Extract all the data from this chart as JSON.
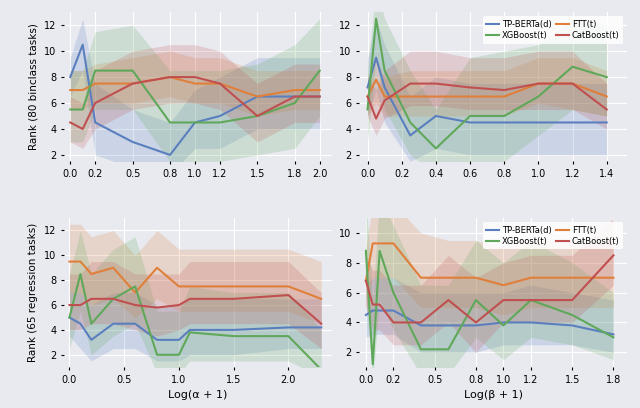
{
  "colors": {
    "tp_berta": "#5b7fbe",
    "ftt": "#e07f3a",
    "xgboost": "#5fa85a",
    "catboost": "#c05050"
  },
  "alpha_fill": 0.2,
  "top_left": {
    "x": [
      0.0,
      0.1,
      0.2,
      0.5,
      0.8,
      1.0,
      1.2,
      1.5,
      1.8,
      2.0
    ],
    "tp_berta_y": [
      8.0,
      10.5,
      4.5,
      3.0,
      2.0,
      4.5,
      5.0,
      6.5,
      6.5,
      6.5
    ],
    "tp_berta_lo": [
      6.5,
      8.5,
      2.0,
      1.0,
      0.5,
      2.5,
      2.5,
      4.0,
      4.0,
      4.0
    ],
    "tp_berta_hi": [
      9.5,
      12.5,
      7.5,
      5.5,
      4.5,
      7.0,
      8.0,
      9.5,
      9.5,
      9.5
    ],
    "ftt_y": [
      7.0,
      7.0,
      7.5,
      7.5,
      8.0,
      7.5,
      7.5,
      6.5,
      7.0,
      7.0
    ],
    "ftt_lo": [
      5.5,
      5.5,
      6.0,
      6.0,
      6.5,
      6.0,
      6.0,
      5.0,
      5.5,
      5.5
    ],
    "ftt_hi": [
      8.5,
      8.5,
      9.0,
      9.5,
      10.0,
      9.5,
      9.5,
      8.5,
      8.5,
      8.5
    ],
    "xgboost_y": [
      5.5,
      5.5,
      8.5,
      8.5,
      4.5,
      4.5,
      4.5,
      5.0,
      6.0,
      8.5
    ],
    "xgboost_lo": [
      3.0,
      3.0,
      5.5,
      5.5,
      1.5,
      1.5,
      1.5,
      2.0,
      2.5,
      5.0
    ],
    "xgboost_hi": [
      8.5,
      8.5,
      11.5,
      12.0,
      8.5,
      8.5,
      8.5,
      9.0,
      10.5,
      12.5
    ],
    "catboost_y": [
      4.5,
      4.0,
      6.0,
      7.5,
      8.0,
      8.0,
      7.5,
      5.0,
      6.5,
      6.5
    ],
    "catboost_lo": [
      3.0,
      2.5,
      4.0,
      5.5,
      6.0,
      6.0,
      5.5,
      3.0,
      4.5,
      4.5
    ],
    "catboost_hi": [
      6.5,
      6.0,
      8.5,
      10.0,
      10.5,
      10.5,
      10.0,
      7.5,
      9.0,
      9.0
    ],
    "ylim": [
      1.5,
      13.0
    ],
    "yticks": [
      2,
      4,
      6,
      8,
      10,
      12
    ],
    "xlim": [
      -0.05,
      2.1
    ],
    "xticks": [
      0.0,
      0.2,
      0.5,
      0.8,
      1.0,
      1.2,
      1.5,
      1.8,
      2.0
    ],
    "xlabel": "",
    "ylabel": "Rank (80 binclass tasks)"
  },
  "top_right": {
    "x": [
      0.0,
      0.05,
      0.1,
      0.25,
      0.4,
      0.6,
      0.8,
      1.0,
      1.2,
      1.4
    ],
    "tp_berta_y": [
      7.2,
      9.5,
      7.2,
      3.5,
      5.0,
      4.5,
      4.5,
      4.5,
      4.5,
      4.5
    ],
    "tp_berta_lo": [
      5.0,
      7.0,
      4.5,
      1.5,
      2.5,
      2.0,
      2.0,
      2.0,
      2.0,
      2.0
    ],
    "tp_berta_hi": [
      9.5,
      12.5,
      10.5,
      6.5,
      8.0,
      7.5,
      7.5,
      7.5,
      7.5,
      7.5
    ],
    "ftt_y": [
      6.5,
      7.8,
      6.5,
      6.5,
      6.5,
      6.5,
      6.5,
      7.5,
      7.5,
      6.5
    ],
    "ftt_lo": [
      5.0,
      6.0,
      5.0,
      5.0,
      5.0,
      5.0,
      5.0,
      6.0,
      5.5,
      5.0
    ],
    "ftt_hi": [
      8.0,
      9.5,
      8.0,
      8.5,
      8.5,
      8.5,
      8.5,
      9.5,
      9.5,
      8.5
    ],
    "xgboost_y": [
      5.5,
      12.5,
      8.5,
      4.5,
      2.5,
      5.0,
      5.0,
      6.5,
      8.8,
      8.0
    ],
    "xgboost_lo": [
      3.0,
      9.5,
      5.5,
      2.0,
      0.5,
      1.5,
      1.5,
      3.5,
      5.5,
      5.0
    ],
    "xgboost_hi": [
      8.5,
      15.0,
      12.5,
      8.5,
      5.5,
      9.5,
      10.0,
      10.5,
      12.5,
      12.0
    ],
    "catboost_y": [
      6.5,
      4.8,
      6.2,
      7.5,
      7.5,
      7.2,
      7.0,
      7.5,
      7.5,
      5.5
    ],
    "catboost_lo": [
      5.0,
      3.5,
      4.8,
      5.8,
      5.8,
      5.5,
      5.5,
      5.5,
      5.5,
      4.0
    ],
    "catboost_hi": [
      8.0,
      7.0,
      8.5,
      10.0,
      10.0,
      9.5,
      9.5,
      10.0,
      10.0,
      7.5
    ],
    "ylim": [
      1.5,
      13.0
    ],
    "yticks": [
      2,
      4,
      6,
      8,
      10,
      12
    ],
    "xlim": [
      -0.05,
      1.52
    ],
    "xticks": [
      0.0,
      0.2,
      0.4,
      0.6,
      0.8,
      1.0,
      1.2,
      1.4
    ],
    "xlabel": "",
    "ylabel": ""
  },
  "bottom_left": {
    "x": [
      0.0,
      0.1,
      0.2,
      0.4,
      0.6,
      0.8,
      1.0,
      1.1,
      1.5,
      2.0,
      2.3
    ],
    "tp_berta_y": [
      5.0,
      4.5,
      3.2,
      4.5,
      4.5,
      3.2,
      3.2,
      4.0,
      4.0,
      4.2,
      4.2
    ],
    "tp_berta_lo": [
      3.5,
      2.5,
      1.5,
      2.5,
      2.5,
      1.5,
      1.5,
      2.0,
      2.0,
      2.5,
      2.5
    ],
    "tp_berta_hi": [
      7.0,
      7.0,
      6.0,
      7.0,
      7.0,
      6.0,
      6.0,
      6.5,
      6.5,
      6.5,
      6.5
    ],
    "ftt_y": [
      9.5,
      9.5,
      8.5,
      9.0,
      7.0,
      9.0,
      7.5,
      7.5,
      7.5,
      7.5,
      6.5
    ],
    "ftt_lo": [
      7.0,
      7.0,
      6.0,
      6.5,
      5.0,
      6.5,
      5.5,
      5.5,
      5.5,
      5.5,
      4.5
    ],
    "ftt_hi": [
      12.5,
      12.5,
      11.5,
      12.0,
      10.0,
      12.0,
      10.5,
      10.5,
      10.5,
      10.5,
      9.5
    ],
    "xgboost_y": [
      5.0,
      8.5,
      4.5,
      6.5,
      7.5,
      2.0,
      2.0,
      3.8,
      3.5,
      3.5,
      0.8
    ],
    "xgboost_lo": [
      2.5,
      5.5,
      2.0,
      3.5,
      4.5,
      0.5,
      0.5,
      1.5,
      1.5,
      1.5,
      0.2
    ],
    "xgboost_hi": [
      8.5,
      12.0,
      8.5,
      10.5,
      11.5,
      5.5,
      5.5,
      7.5,
      7.0,
      7.0,
      4.0
    ],
    "catboost_y": [
      6.0,
      6.0,
      6.5,
      6.5,
      6.0,
      5.8,
      6.0,
      6.5,
      6.5,
      6.8,
      4.5
    ],
    "catboost_lo": [
      4.0,
      4.0,
      4.5,
      4.5,
      4.0,
      3.5,
      4.0,
      4.5,
      4.5,
      4.5,
      2.5
    ],
    "catboost_hi": [
      8.5,
      8.5,
      9.5,
      9.5,
      8.5,
      8.5,
      8.5,
      9.5,
      9.5,
      9.5,
      7.0
    ],
    "ylim": [
      1.0,
      13.0
    ],
    "yticks": [
      2,
      4,
      6,
      8,
      10,
      12
    ],
    "xlim": [
      -0.05,
      2.4
    ],
    "xticks": [
      0.0,
      0.5,
      1.0,
      1.5,
      2.0
    ],
    "xlabel": "Log(α + 1)",
    "ylabel": "Rank (65 regression tasks)"
  },
  "bottom_right": {
    "x": [
      0.0,
      0.05,
      0.1,
      0.2,
      0.4,
      0.6,
      0.8,
      1.0,
      1.2,
      1.5,
      1.8
    ],
    "tp_berta_y": [
      4.5,
      4.8,
      4.8,
      4.8,
      3.8,
      3.8,
      3.8,
      4.0,
      4.0,
      3.8,
      3.2
    ],
    "tp_berta_lo": [
      3.0,
      3.2,
      3.2,
      3.2,
      2.0,
      2.0,
      2.0,
      2.5,
      2.5,
      2.5,
      2.0
    ],
    "tp_berta_hi": [
      6.5,
      7.0,
      7.0,
      7.0,
      6.0,
      6.0,
      6.0,
      6.0,
      6.5,
      6.0,
      5.5
    ],
    "ftt_y": [
      6.8,
      9.3,
      9.3,
      9.3,
      7.0,
      7.0,
      7.0,
      6.5,
      7.0,
      7.0,
      7.0
    ],
    "ftt_lo": [
      5.0,
      7.0,
      7.0,
      7.0,
      5.0,
      5.0,
      5.0,
      4.5,
      5.0,
      5.0,
      5.0
    ],
    "ftt_hi": [
      9.0,
      12.0,
      12.0,
      12.0,
      10.0,
      9.5,
      9.5,
      9.0,
      9.5,
      9.5,
      9.5
    ],
    "xgboost_y": [
      8.8,
      1.2,
      8.8,
      6.0,
      2.2,
      2.2,
      5.5,
      3.8,
      5.5,
      4.5,
      3.0
    ],
    "xgboost_lo": [
      5.5,
      0.2,
      5.5,
      3.5,
      0.5,
      0.5,
      3.0,
      1.5,
      3.0,
      2.5,
      1.5
    ],
    "xgboost_hi": [
      12.5,
      5.5,
      12.5,
      10.5,
      6.5,
      6.5,
      9.5,
      8.0,
      9.5,
      8.0,
      6.0
    ],
    "catboost_y": [
      6.8,
      5.2,
      5.2,
      4.0,
      4.0,
      5.5,
      4.0,
      5.5,
      5.5,
      5.5,
      8.5
    ],
    "catboost_lo": [
      5.0,
      3.5,
      3.5,
      2.5,
      2.5,
      4.0,
      2.0,
      4.0,
      4.0,
      4.0,
      6.5
    ],
    "catboost_hi": [
      8.5,
      7.5,
      7.5,
      6.5,
      6.5,
      8.5,
      7.0,
      8.0,
      8.5,
      8.5,
      11.0
    ],
    "ylim": [
      1.0,
      11.0
    ],
    "yticks": [
      2,
      4,
      6,
      8,
      10
    ],
    "xlim": [
      -0.05,
      1.9
    ],
    "xticks": [
      0.0,
      0.2,
      0.5,
      0.8,
      1.0,
      1.2,
      1.5,
      1.8
    ],
    "xlabel": "Log(β + 1)",
    "ylabel": ""
  },
  "bg_color": "#e8eaf0",
  "grid_color": "#ffffff",
  "linewidth": 1.5
}
